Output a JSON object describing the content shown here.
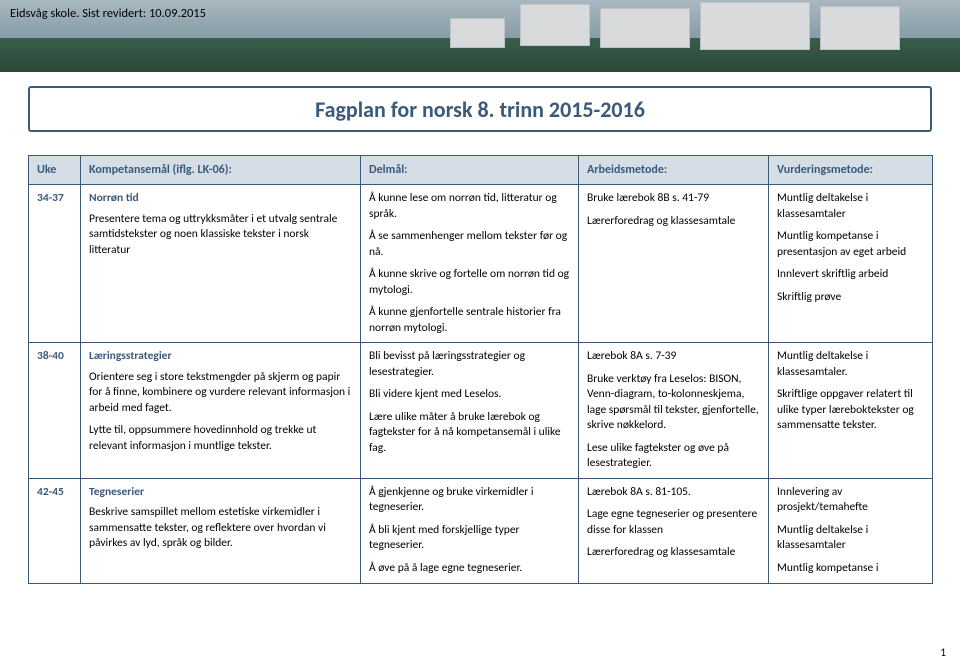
{
  "meta": {
    "header": "Eidsvåg skole. Sist revidert: 10.09.2015",
    "title": "Fagplan for norsk 8. trinn 2015-2016",
    "page_number": "1"
  },
  "colors": {
    "border": "#3b5a7a",
    "th_bg": "#d5dde6",
    "th_text": "#3b5a7a"
  },
  "columns": {
    "uke": "Uke",
    "komp": "Kompetansemål (iflg. LK-06):",
    "del": "Delmål:",
    "arb": "Arbeidsmetode:",
    "vur": "Vurderingsmetode:"
  },
  "rows": [
    {
      "uke": "34-37",
      "komp_topic": "Norrøn tid",
      "komp_body": [
        "Presentere tema og uttrykksmåter i et utvalg sentrale samtidstekster og noen klassiske tekster i norsk litteratur"
      ],
      "del": [
        "Å kunne lese om norrøn tid, litteratur og språk.",
        "Å se sammenhenger mellom tekster før og nå.",
        "Å kunne skrive og fortelle om norrøn tid og mytologi.",
        "Å kunne gjenfortelle sentrale historier fra norrøn mytologi."
      ],
      "arb": [
        "Bruke lærebok 8B s. 41-79",
        "Lærerforedrag og klassesamtale"
      ],
      "vur": [
        "Muntlig deltakelse i klassesamtaler",
        "Muntlig kompetanse i presentasjon av eget arbeid",
        "Innlevert skriftlig arbeid",
        "Skriftlig prøve"
      ]
    },
    {
      "uke": "38-40",
      "komp_topic": "Læringsstrategier",
      "komp_body": [
        "Orientere seg i store tekstmengder på skjerm og papir for å finne, kombinere og vurdere relevant informasjon i arbeid med faget.",
        "Lytte til, oppsummere hovedinnhold og trekke ut relevant informasjon i muntlige tekster."
      ],
      "del": [
        "Bli bevisst på læringsstrategier og lesestrategier.",
        "Bli videre kjent med Leselos.",
        "Lære ulike måter å bruke lærebok og fagtekster for å nå kompetansemål i ulike fag."
      ],
      "arb": [
        "Lærebok 8A s. 7-39",
        "Bruke verktøy fra Leselos: BISON, Venn-diagram, to-kolonneskjema, lage spørsmål til tekster, gjenfortelle, skrive nøkkelord.",
        "Lese ulike fagtekster og øve på lesestrategier."
      ],
      "vur": [
        "Muntlig deltakelse i klassesamtaler.",
        "Skriftlige oppgaver relatert til ulike typer læreboktekster og sammensatte tekster."
      ]
    },
    {
      "uke": "42-45",
      "komp_topic": "Tegneserier",
      "komp_body": [
        "Beskrive samspillet mellom estetiske virkemidler i sammensatte tekster, og reflektere over hvordan vi påvirkes av lyd, språk og bilder."
      ],
      "del": [
        "Å gjenkjenne og bruke virkemidler i tegneserier.",
        "Å bli kjent med forskjellige typer tegneserier.",
        "Å øve på å lage egne tegneserier."
      ],
      "arb": [
        "Lærebok 8A s. 81-105.",
        "Lage egne tegneserier og presentere disse for klassen",
        "Lærerforedrag og klassesamtale"
      ],
      "vur": [
        "Innlevering av prosjekt/temahefte",
        "Muntlig deltakelse i klassesamtaler",
        "Muntlig kompetanse i"
      ]
    }
  ]
}
